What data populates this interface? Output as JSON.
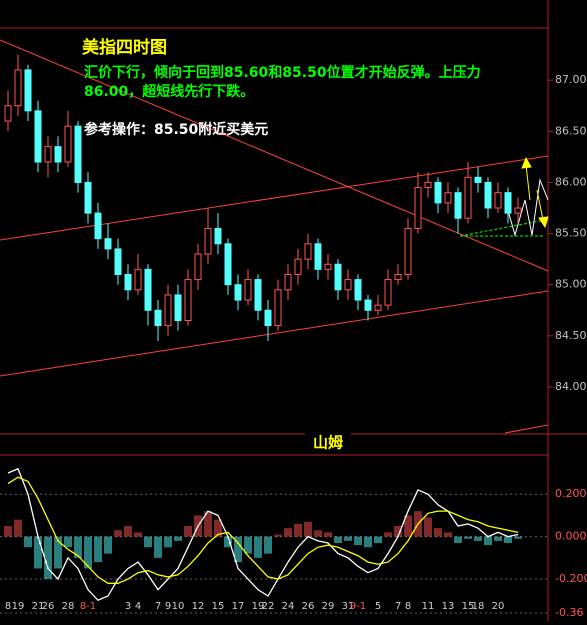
{
  "chart_data": [
    {
      "type": "candlestick",
      "title": "美指四时图",
      "annotations": [
        "汇价下行，倾向于回到85.60和85.50位置才开始反弹。上压力",
        "86.00，超短线先行下跌。",
        "参考操作：85.50附近买美元"
      ],
      "up_color": "#ff5454",
      "down_color": "#54fcfc",
      "categories": [
        "8",
        "19",
        null,
        "21",
        "26",
        null,
        "28",
        null,
        "8-1",
        null,
        null,
        null,
        "3",
        "4",
        null,
        "7",
        "9",
        "10",
        null,
        "12",
        null,
        "15",
        null,
        "17",
        null,
        "19",
        "22",
        null,
        "24",
        null,
        "26",
        null,
        "29",
        null,
        "31",
        "9-1",
        null,
        "5",
        null,
        "7",
        "8",
        null,
        "11",
        null,
        "13",
        null,
        "15",
        "18",
        null,
        "20",
        null,
        null
      ],
      "candles": [
        [
          86.6,
          86.9,
          86.5,
          86.75
        ],
        [
          86.75,
          87.25,
          86.65,
          87.1
        ],
        [
          87.1,
          87.15,
          86.6,
          86.7
        ],
        [
          86.7,
          86.8,
          86.1,
          86.2
        ],
        [
          86.2,
          86.45,
          86.05,
          86.35
        ],
        [
          86.35,
          86.45,
          86.1,
          86.2
        ],
        [
          86.2,
          86.7,
          86.15,
          86.55
        ],
        [
          86.55,
          86.6,
          85.9,
          86.0
        ],
        [
          86.0,
          86.1,
          85.6,
          85.7
        ],
        [
          85.7,
          85.8,
          85.35,
          85.45
        ],
        [
          85.45,
          85.6,
          85.25,
          85.35
        ],
        [
          85.35,
          85.45,
          85.0,
          85.1
        ],
        [
          85.1,
          85.2,
          84.85,
          84.95
        ],
        [
          84.95,
          85.3,
          84.9,
          85.15
        ],
        [
          85.15,
          85.2,
          84.6,
          84.75
        ],
        [
          84.75,
          84.85,
          84.45,
          84.6
        ],
        [
          84.6,
          85.0,
          84.5,
          84.9
        ],
        [
          84.9,
          85.0,
          84.55,
          84.65
        ],
        [
          84.65,
          85.15,
          84.6,
          85.05
        ],
        [
          85.05,
          85.4,
          84.95,
          85.3
        ],
        [
          85.3,
          85.75,
          85.2,
          85.55
        ],
        [
          85.55,
          85.7,
          85.3,
          85.4
        ],
        [
          85.4,
          85.45,
          84.9,
          85.0
        ],
        [
          85.0,
          85.1,
          84.75,
          84.85
        ],
        [
          84.85,
          85.15,
          84.8,
          85.05
        ],
        [
          85.05,
          85.1,
          84.65,
          84.75
        ],
        [
          84.75,
          84.85,
          84.45,
          84.6
        ],
        [
          84.6,
          85.05,
          84.55,
          84.95
        ],
        [
          84.95,
          85.2,
          84.85,
          85.1
        ],
        [
          85.1,
          85.35,
          85.0,
          85.25
        ],
        [
          85.25,
          85.5,
          85.15,
          85.4
        ],
        [
          85.4,
          85.45,
          85.05,
          85.15
        ],
        [
          85.15,
          85.3,
          85.05,
          85.2
        ],
        [
          85.2,
          85.25,
          84.85,
          84.95
        ],
        [
          84.95,
          85.15,
          84.85,
          85.05
        ],
        [
          85.05,
          85.1,
          84.75,
          84.85
        ],
        [
          84.85,
          84.9,
          84.65,
          84.75
        ],
        [
          84.75,
          84.9,
          84.7,
          84.8
        ],
        [
          84.8,
          85.15,
          84.75,
          85.05
        ],
        [
          85.05,
          85.2,
          85.0,
          85.1
        ],
        [
          85.1,
          85.65,
          85.05,
          85.55
        ],
        [
          85.55,
          86.1,
          85.5,
          85.95
        ],
        [
          85.95,
          86.1,
          85.85,
          86.0
        ],
        [
          86.0,
          86.05,
          85.7,
          85.8
        ],
        [
          85.8,
          86.0,
          85.7,
          85.9
        ],
        [
          85.9,
          85.95,
          85.5,
          85.65
        ],
        [
          85.65,
          86.2,
          85.6,
          86.05
        ],
        [
          86.05,
          86.15,
          85.9,
          86.0
        ],
        [
          86.0,
          86.05,
          85.65,
          85.75
        ],
        [
          85.75,
          86.0,
          85.7,
          85.9
        ],
        [
          85.9,
          85.95,
          85.6,
          85.7
        ],
        [
          85.7,
          85.85,
          85.6,
          85.75
        ]
      ],
      "ylim": [
        83.55,
        87.51
      ],
      "yticks": [
        {
          "value": 87,
          "label": "87.00"
        },
        {
          "value": 86.5,
          "label": "86.50"
        },
        {
          "value": 86,
          "label": "86.00"
        },
        {
          "value": 85.5,
          "label": "85.50"
        },
        {
          "value": 85,
          "label": "85.00"
        },
        {
          "value": 84.5,
          "label": "84.50"
        },
        {
          "value": 84,
          "label": "84.00"
        }
      ]
    },
    {
      "type": "macd",
      "label": "山姆",
      "histogram": [
        0.05,
        0.08,
        -0.05,
        -0.15,
        -0.2,
        -0.15,
        -0.05,
        -0.1,
        -0.15,
        -0.12,
        -0.08,
        0.03,
        0.05,
        0.02,
        -0.05,
        -0.1,
        -0.05,
        -0.02,
        0.05,
        0.1,
        0.12,
        0.08,
        -0.05,
        -0.12,
        -0.08,
        -0.1,
        -0.08,
        0.01,
        0.04,
        0.06,
        0.07,
        0.03,
        0.02,
        -0.03,
        -0.02,
        -0.04,
        -0.05,
        -0.03,
        0.02,
        0.05,
        0.1,
        0.12,
        0.09,
        0.04,
        0.02,
        -0.03,
        -0.01,
        -0.02,
        -0.04,
        -0.02,
        -0.03,
        -0.01
      ],
      "lines": [
        {
          "color": "#ffffff",
          "values": [
            0.3,
            0.32,
            0.2,
            0.0,
            -0.15,
            -0.2,
            -0.1,
            -0.15,
            -0.25,
            -0.3,
            -0.28,
            -0.2,
            -0.15,
            -0.12,
            -0.18,
            -0.25,
            -0.2,
            -0.15,
            -0.05,
            0.05,
            0.12,
            0.1,
            0.0,
            -0.15,
            -0.2,
            -0.25,
            -0.28,
            -0.2,
            -0.12,
            -0.05,
            0.0,
            -0.02,
            -0.03,
            -0.08,
            -0.1,
            -0.14,
            -0.17,
            -0.15,
            -0.08,
            0.0,
            0.12,
            0.22,
            0.2,
            0.15,
            0.12,
            0.05,
            0.06,
            0.04,
            0.0,
            0.02,
            0.0,
            0.01
          ]
        },
        {
          "color": "#ffff00",
          "values": [
            0.25,
            0.28,
            0.26,
            0.18,
            0.08,
            -0.02,
            -0.06,
            -0.09,
            -0.14,
            -0.19,
            -0.22,
            -0.22,
            -0.2,
            -0.17,
            -0.16,
            -0.18,
            -0.19,
            -0.18,
            -0.14,
            -0.09,
            -0.03,
            0.01,
            0.02,
            -0.03,
            -0.09,
            -0.14,
            -0.19,
            -0.2,
            -0.18,
            -0.13,
            -0.08,
            -0.05,
            -0.04,
            -0.05,
            -0.07,
            -0.09,
            -0.12,
            -0.13,
            -0.12,
            -0.08,
            -0.02,
            0.06,
            0.11,
            0.12,
            0.12,
            0.1,
            0.08,
            0.07,
            0.05,
            0.04,
            0.03,
            0.02
          ]
        }
      ],
      "ylim": [
        -0.36,
        0.38
      ],
      "yticks": [
        {
          "value": 0.2,
          "label": "0.200"
        },
        {
          "value": 0,
          "label": "0.000"
        },
        {
          "value": -0.2,
          "label": "-0.200"
        },
        {
          "value": -0.36,
          "label": "-0.36"
        }
      ]
    }
  ]
}
